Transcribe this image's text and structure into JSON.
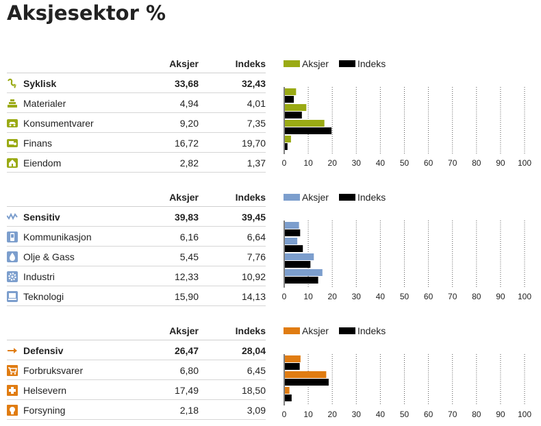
{
  "title": "Aksjesektor %",
  "colors": {
    "fund_syklisk": "#9aaa14",
    "fund_sensitiv": "#7c9ecd",
    "fund_defensiv": "#e07c12",
    "index": "#000000",
    "grid": "#555555"
  },
  "columns": {
    "fund": "Aksjer",
    "index": "Indeks"
  },
  "sections": [
    {
      "key": "syklisk",
      "super": {
        "name": "Syklisk",
        "icon": "syklisk-icon",
        "fund": "33,68",
        "index": "32,43"
      },
      "rows": [
        {
          "name": "Materialer",
          "icon": "materialer-icon",
          "fund": "4,94",
          "index": "4,01"
        },
        {
          "name": "Konsumentvarer",
          "icon": "konsumentvarer-icon",
          "fund": "9,20",
          "index": "7,35"
        },
        {
          "name": "Finans",
          "icon": "finans-icon",
          "fund": "16,72",
          "index": "19,70"
        },
        {
          "name": "Eiendom",
          "icon": "eiendom-icon",
          "fund": "2,82",
          "index": "1,37"
        }
      ]
    },
    {
      "key": "sensitiv",
      "super": {
        "name": "Sensitiv",
        "icon": "sensitiv-icon",
        "fund": "39,83",
        "index": "39,45"
      },
      "rows": [
        {
          "name": "Kommunikasjon",
          "icon": "kommunikasjon-icon",
          "fund": "6,16",
          "index": "6,64"
        },
        {
          "name": "Olje & Gass",
          "icon": "olje-gass-icon",
          "fund": "5,45",
          "index": "7,76"
        },
        {
          "name": "Industri",
          "icon": "industri-icon",
          "fund": "12,33",
          "index": "10,92"
        },
        {
          "name": "Teknologi",
          "icon": "teknologi-icon",
          "fund": "15,90",
          "index": "14,13"
        }
      ]
    },
    {
      "key": "defensiv",
      "super": {
        "name": "Defensiv",
        "icon": "defensiv-icon",
        "fund": "26,47",
        "index": "28,04"
      },
      "rows": [
        {
          "name": "Forbruksvarer",
          "icon": "forbruksvarer-icon",
          "fund": "6,80",
          "index": "6,45"
        },
        {
          "name": "Helsevern",
          "icon": "helsevern-icon",
          "fund": "17,49",
          "index": "18,50"
        },
        {
          "name": "Forsyning",
          "icon": "forsyning-icon",
          "fund": "2,18",
          "index": "3,09"
        }
      ]
    }
  ],
  "chart_data": [
    {
      "type": "bar",
      "orientation": "horizontal",
      "categories": [
        "Materialer",
        "Konsumentvarer",
        "Finans",
        "Eiendom"
      ],
      "series": [
        {
          "name": "Aksjer",
          "values": [
            4.94,
            9.2,
            16.72,
            2.82
          ]
        },
        {
          "name": "Indeks",
          "values": [
            4.01,
            7.35,
            19.7,
            1.37
          ]
        }
      ],
      "xlim": [
        0,
        100
      ],
      "ticks": [
        0,
        10,
        20,
        30,
        40,
        50,
        60,
        70,
        80,
        90,
        100
      ],
      "legend": "top-left",
      "grid": true
    },
    {
      "type": "bar",
      "orientation": "horizontal",
      "categories": [
        "Kommunikasjon",
        "Olje & Gass",
        "Industri",
        "Teknologi"
      ],
      "series": [
        {
          "name": "Aksjer",
          "values": [
            6.16,
            5.45,
            12.33,
            15.9
          ]
        },
        {
          "name": "Indeks",
          "values": [
            6.64,
            7.76,
            10.92,
            14.13
          ]
        }
      ],
      "xlim": [
        0,
        100
      ],
      "ticks": [
        0,
        10,
        20,
        30,
        40,
        50,
        60,
        70,
        80,
        90,
        100
      ],
      "legend": "top-left",
      "grid": true
    },
    {
      "type": "bar",
      "orientation": "horizontal",
      "categories": [
        "Forbruksvarer",
        "Helsevern",
        "Forsyning"
      ],
      "series": [
        {
          "name": "Aksjer",
          "values": [
            6.8,
            17.49,
            2.18
          ]
        },
        {
          "name": "Indeks",
          "values": [
            6.45,
            18.5,
            3.09
          ]
        }
      ],
      "xlim": [
        0,
        100
      ],
      "ticks": [
        0,
        10,
        20,
        30,
        40,
        50,
        60,
        70,
        80,
        90,
        100
      ],
      "legend": "top-left",
      "grid": true
    }
  ]
}
